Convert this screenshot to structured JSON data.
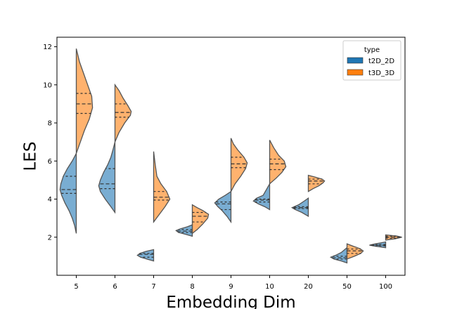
{
  "chart_data": {
    "type": "violin",
    "xlabel": "Embedding Dim",
    "ylabel": "LES",
    "categories": [
      "5",
      "6",
      "7",
      "8",
      "9",
      "10",
      "20",
      "50",
      "100"
    ],
    "ylim": [
      0,
      12.5
    ],
    "yticks": [
      2,
      4,
      6,
      8,
      10,
      12
    ],
    "grid": false,
    "split": true,
    "legend": {
      "title": "type",
      "placement": "top-right"
    },
    "series": [
      {
        "name": "t2D_2D",
        "color": "#1f77b4",
        "side": "left",
        "violins": [
          {
            "min": 2.2,
            "max": 6.4,
            "q1": 4.3,
            "median": 4.5,
            "q3": 5.2,
            "profile": [
              [
                2.2,
                0.0
              ],
              [
                2.6,
                0.1
              ],
              [
                3.0,
                0.25
              ],
              [
                3.4,
                0.45
              ],
              [
                3.8,
                0.7
              ],
              [
                4.2,
                0.9
              ],
              [
                4.5,
                1.0
              ],
              [
                4.8,
                0.95
              ],
              [
                5.2,
                0.8
              ],
              [
                5.6,
                0.55
              ],
              [
                6.0,
                0.25
              ],
              [
                6.4,
                0.0
              ]
            ]
          },
          {
            "min": 3.3,
            "max": 7.0,
            "q1": 4.55,
            "median": 4.8,
            "q3": 5.6,
            "profile": [
              [
                3.3,
                0.0
              ],
              [
                3.6,
                0.25
              ],
              [
                4.0,
                0.6
              ],
              [
                4.4,
                0.9
              ],
              [
                4.7,
                1.0
              ],
              [
                5.0,
                0.9
              ],
              [
                5.4,
                0.7
              ],
              [
                5.8,
                0.45
              ],
              [
                6.2,
                0.25
              ],
              [
                6.6,
                0.12
              ],
              [
                7.0,
                0.0
              ]
            ]
          },
          {
            "min": 0.75,
            "max": 1.35,
            "q1": 0.95,
            "median": 1.1,
            "q3": 1.15,
            "profile": [
              [
                0.75,
                0.0
              ],
              [
                0.85,
                0.4
              ],
              [
                0.95,
                0.8
              ],
              [
                1.05,
                1.0
              ],
              [
                1.15,
                0.85
              ],
              [
                1.25,
                0.5
              ],
              [
                1.35,
                0.0
              ]
            ]
          },
          {
            "min": 2.05,
            "max": 2.65,
            "q1": 2.25,
            "median": 2.32,
            "q3": 2.4,
            "profile": [
              [
                2.05,
                0.0
              ],
              [
                2.15,
                0.4
              ],
              [
                2.25,
                0.85
              ],
              [
                2.35,
                1.0
              ],
              [
                2.45,
                0.7
              ],
              [
                2.55,
                0.3
              ],
              [
                2.65,
                0.0
              ]
            ]
          },
          {
            "min": 2.8,
            "max": 4.4,
            "q1": 3.45,
            "median": 3.75,
            "q3": 3.85,
            "profile": [
              [
                2.8,
                0.0
              ],
              [
                3.1,
                0.25
              ],
              [
                3.4,
                0.55
              ],
              [
                3.6,
                0.8
              ],
              [
                3.8,
                1.0
              ],
              [
                4.0,
                0.75
              ],
              [
                4.2,
                0.35
              ],
              [
                4.4,
                0.0
              ]
            ]
          },
          {
            "min": 3.45,
            "max": 4.8,
            "q1": 3.85,
            "median": 3.95,
            "q3": 4.0,
            "profile": [
              [
                3.45,
                0.0
              ],
              [
                3.6,
                0.3
              ],
              [
                3.75,
                0.7
              ],
              [
                3.9,
                1.0
              ],
              [
                4.05,
                0.8
              ],
              [
                4.2,
                0.4
              ],
              [
                4.5,
                0.2
              ],
              [
                4.8,
                0.0
              ]
            ]
          },
          {
            "min": 3.1,
            "max": 4.05,
            "q1": 3.5,
            "median": 3.55,
            "q3": 3.6,
            "profile": [
              [
                3.1,
                0.0
              ],
              [
                3.3,
                0.4
              ],
              [
                3.45,
                0.8
              ],
              [
                3.55,
                1.0
              ],
              [
                3.7,
                0.6
              ],
              [
                3.9,
                0.25
              ],
              [
                4.05,
                0.0
              ]
            ]
          },
          {
            "min": 0.65,
            "max": 1.45,
            "q1": 0.85,
            "median": 0.92,
            "q3": 1.0,
            "profile": [
              [
                0.65,
                0.0
              ],
              [
                0.75,
                0.35
              ],
              [
                0.85,
                0.8
              ],
              [
                0.95,
                1.0
              ],
              [
                1.05,
                0.7
              ],
              [
                1.2,
                0.35
              ],
              [
                1.45,
                0.0
              ]
            ]
          },
          {
            "min": 1.45,
            "max": 1.75,
            "q1": 1.55,
            "median": 1.58,
            "q3": 1.62,
            "profile": [
              [
                1.45,
                0.0
              ],
              [
                1.52,
                0.6
              ],
              [
                1.58,
                1.0
              ],
              [
                1.64,
                0.7
              ],
              [
                1.75,
                0.0
              ]
            ]
          }
        ]
      },
      {
        "name": "t3D_3D",
        "color": "#ff7f0e",
        "side": "right",
        "violins": [
          {
            "min": 6.4,
            "max": 11.9,
            "q1": 8.5,
            "median": 9.0,
            "q3": 9.55,
            "profile": [
              [
                6.4,
                0.0
              ],
              [
                7.0,
                0.25
              ],
              [
                7.6,
                0.5
              ],
              [
                8.2,
                0.8
              ],
              [
                8.8,
                1.0
              ],
              [
                9.4,
                0.95
              ],
              [
                10.0,
                0.7
              ],
              [
                10.6,
                0.45
              ],
              [
                11.2,
                0.2
              ],
              [
                11.9,
                0.0
              ]
            ]
          },
          {
            "min": 7.0,
            "max": 10.0,
            "q1": 8.3,
            "median": 8.55,
            "q3": 9.0,
            "profile": [
              [
                7.0,
                0.0
              ],
              [
                7.5,
                0.25
              ],
              [
                8.0,
                0.6
              ],
              [
                8.4,
                0.95
              ],
              [
                8.6,
                1.0
              ],
              [
                8.9,
                0.8
              ],
              [
                9.3,
                0.5
              ],
              [
                9.7,
                0.25
              ],
              [
                10.0,
                0.0
              ]
            ]
          },
          {
            "min": 2.8,
            "max": 6.5,
            "q1": 3.95,
            "median": 4.1,
            "q3": 4.4,
            "profile": [
              [
                2.8,
                0.0
              ],
              [
                3.2,
                0.35
              ],
              [
                3.6,
                0.7
              ],
              [
                4.0,
                1.0
              ],
              [
                4.4,
                0.8
              ],
              [
                4.8,
                0.45
              ],
              [
                5.2,
                0.2
              ],
              [
                5.8,
                0.1
              ],
              [
                6.5,
                0.0
              ]
            ]
          },
          {
            "min": 2.2,
            "max": 3.7,
            "q1": 2.8,
            "median": 3.1,
            "q3": 3.3,
            "profile": [
              [
                2.2,
                0.0
              ],
              [
                2.4,
                0.3
              ],
              [
                2.7,
                0.65
              ],
              [
                3.0,
                0.95
              ],
              [
                3.2,
                1.0
              ],
              [
                3.4,
                0.65
              ],
              [
                3.55,
                0.3
              ],
              [
                3.7,
                0.0
              ]
            ]
          },
          {
            "min": 4.4,
            "max": 7.2,
            "q1": 5.65,
            "median": 5.85,
            "q3": 6.2,
            "profile": [
              [
                4.4,
                0.0
              ],
              [
                4.8,
                0.25
              ],
              [
                5.2,
                0.6
              ],
              [
                5.6,
                0.9
              ],
              [
                5.9,
                1.0
              ],
              [
                6.2,
                0.8
              ],
              [
                6.6,
                0.4
              ],
              [
                6.9,
                0.15
              ],
              [
                7.2,
                0.0
              ]
            ]
          },
          {
            "min": 4.8,
            "max": 7.1,
            "q1": 5.55,
            "median": 5.85,
            "q3": 6.1,
            "profile": [
              [
                4.8,
                0.0
              ],
              [
                5.1,
                0.4
              ],
              [
                5.4,
                0.75
              ],
              [
                5.7,
                1.0
              ],
              [
                6.0,
                0.9
              ],
              [
                6.3,
                0.55
              ],
              [
                6.7,
                0.25
              ],
              [
                7.1,
                0.0
              ]
            ]
          },
          {
            "min": 4.4,
            "max": 5.25,
            "q1": 4.8,
            "median": 4.95,
            "q3": 5.05,
            "profile": [
              [
                4.4,
                0.0
              ],
              [
                4.55,
                0.3
              ],
              [
                4.7,
                0.65
              ],
              [
                4.85,
                0.9
              ],
              [
                4.95,
                1.0
              ],
              [
                5.05,
                0.85
              ],
              [
                5.15,
                0.45
              ],
              [
                5.25,
                0.0
              ]
            ]
          },
          {
            "min": 0.85,
            "max": 1.65,
            "q1": 1.15,
            "median": 1.28,
            "q3": 1.38,
            "profile": [
              [
                0.85,
                0.0
              ],
              [
                1.0,
                0.45
              ],
              [
                1.15,
                0.85
              ],
              [
                1.28,
                1.0
              ],
              [
                1.4,
                0.8
              ],
              [
                1.52,
                0.4
              ],
              [
                1.65,
                0.0
              ]
            ]
          },
          {
            "min": 1.85,
            "max": 2.12,
            "q1": 1.95,
            "median": 2.0,
            "q3": 2.05,
            "profile": [
              [
                1.85,
                0.0
              ],
              [
                1.92,
                0.6
              ],
              [
                2.0,
                1.0
              ],
              [
                2.06,
                0.7
              ],
              [
                2.12,
                0.0
              ]
            ]
          }
        ]
      }
    ]
  }
}
